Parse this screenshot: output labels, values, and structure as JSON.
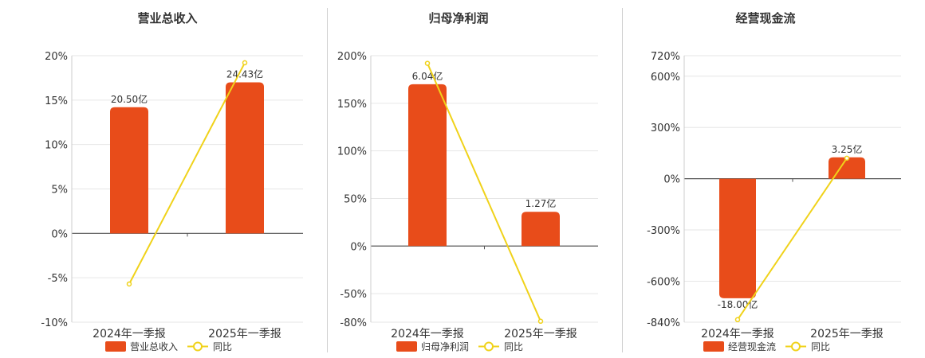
{
  "colors": {
    "bar": "#e84c1a",
    "line": "#f0d21a",
    "grid": "#e6e6e6",
    "axis": "#555555",
    "text": "#333333"
  },
  "legend_line_name": "同比",
  "chart_data": [
    {
      "type": "bar+line",
      "title": "营业总收入",
      "categories": [
        "2024年一季报",
        "2025年一季报"
      ],
      "series": [
        {
          "name": "营业总收入",
          "type": "bar",
          "value_labels": [
            "20.50亿",
            "24.43亿"
          ],
          "values": [
            20.5,
            24.43
          ]
        },
        {
          "name": "同比",
          "type": "line",
          "values": [
            -5.7,
            19.2
          ]
        }
      ],
      "y_axis": {
        "ticks": [
          20,
          15,
          10,
          5,
          0,
          -5,
          -10
        ],
        "tick_labels": [
          "20%",
          "15%",
          "10%",
          "5%",
          "0%",
          "-5%",
          "-10%"
        ],
        "min": -10,
        "max": 20
      },
      "bar_heights_pct": [
        14.2,
        17.0
      ],
      "grid": true,
      "legend_position": "bottom"
    },
    {
      "type": "bar+line",
      "title": "归母净利润",
      "categories": [
        "2024年一季报",
        "2025年一季报"
      ],
      "series": [
        {
          "name": "归母净利润",
          "type": "bar",
          "value_labels": [
            "6.04亿",
            "1.27亿"
          ],
          "values": [
            6.04,
            1.27
          ]
        },
        {
          "name": "同比",
          "type": "line",
          "values": [
            192,
            -79
          ]
        }
      ],
      "y_axis": {
        "ticks": [
          200,
          150,
          100,
          50,
          0,
          -50,
          -80
        ],
        "tick_labels": [
          "200%",
          "150%",
          "100%",
          "50%",
          "0%",
          "-50%",
          "-80%"
        ],
        "min": -80,
        "max": 200
      },
      "bar_heights_pct": [
        170,
        36
      ],
      "grid": true,
      "legend_position": "bottom"
    },
    {
      "type": "bar+line",
      "title": "经营现金流",
      "categories": [
        "2024年一季报",
        "2025年一季报"
      ],
      "series": [
        {
          "name": "经营现金流",
          "type": "bar",
          "value_labels": [
            "-18.00亿",
            "3.25亿"
          ],
          "values": [
            -18.0,
            3.25
          ]
        },
        {
          "name": "同比",
          "type": "line",
          "values": [
            -825,
            120
          ]
        }
      ],
      "y_axis": {
        "ticks": [
          720,
          600,
          300,
          0,
          -300,
          -600,
          -840
        ],
        "tick_labels": [
          "720%",
          "600%",
          "300%",
          "0%",
          "-300%",
          "-600%",
          "-840%"
        ],
        "min": -840,
        "max": 720
      },
      "bar_heights_pct": [
        -700,
        125
      ],
      "grid": true,
      "legend_position": "bottom"
    }
  ]
}
